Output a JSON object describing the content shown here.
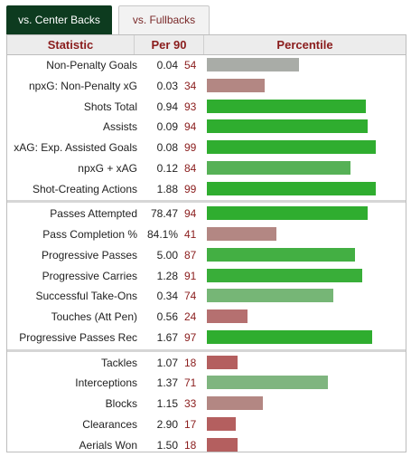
{
  "tabs": {
    "active": "vs. Center Backs",
    "inactive": "vs. Fullbacks"
  },
  "table": {
    "headers": {
      "statistic": "Statistic",
      "per90": "Per 90",
      "percentile": "Percentile"
    },
    "colors": {
      "strong_green": "#2fad2f",
      "mid_green": "#76b676",
      "grey": "#a9aca7",
      "mauve": "#b38783",
      "red": "#b45f5f"
    },
    "groups": [
      [
        {
          "stat": "Non-Penalty Goals",
          "per90": "0.04",
          "pct": "54",
          "color": "#a9aca7"
        },
        {
          "stat": "npxG: Non-Penalty xG",
          "per90": "0.03",
          "pct": "34",
          "color": "#b38783"
        },
        {
          "stat": "Shots Total",
          "per90": "0.94",
          "pct": "93",
          "color": "#2fad2f"
        },
        {
          "stat": "Assists",
          "per90": "0.09",
          "pct": "94",
          "color": "#2fad2f"
        },
        {
          "stat": "xAG: Exp. Assisted Goals",
          "per90": "0.08",
          "pct": "99",
          "color": "#2fad2f"
        },
        {
          "stat": "npxG + xAG",
          "per90": "0.12",
          "pct": "84",
          "color": "#56b156"
        },
        {
          "stat": "Shot-Creating Actions",
          "per90": "1.88",
          "pct": "99",
          "color": "#2fad2f"
        }
      ],
      [
        {
          "stat": "Passes Attempted",
          "per90": "78.47",
          "pct": "94",
          "color": "#2fad2f"
        },
        {
          "stat": "Pass Completion %",
          "per90": "84.1%",
          "pct": "41",
          "color": "#b38783"
        },
        {
          "stat": "Progressive Passes",
          "per90": "5.00",
          "pct": "87",
          "color": "#43af43"
        },
        {
          "stat": "Progressive Carries",
          "per90": "1.28",
          "pct": "91",
          "color": "#39ae39"
        },
        {
          "stat": "Successful Take-Ons",
          "per90": "0.34",
          "pct": "74",
          "color": "#76b676"
        },
        {
          "stat": "Touches (Att Pen)",
          "per90": "0.56",
          "pct": "24",
          "color": "#b57070"
        },
        {
          "stat": "Progressive Passes Rec",
          "per90": "1.67",
          "pct": "97",
          "color": "#2fad2f"
        }
      ],
      [
        {
          "stat": "Tackles",
          "per90": "1.07",
          "pct": "18",
          "color": "#b45f5f"
        },
        {
          "stat": "Interceptions",
          "per90": "1.37",
          "pct": "71",
          "color": "#7fb57f"
        },
        {
          "stat": "Blocks",
          "per90": "1.15",
          "pct": "33",
          "color": "#b38783"
        },
        {
          "stat": "Clearances",
          "per90": "2.90",
          "pct": "17",
          "color": "#b45f5f"
        },
        {
          "stat": "Aerials Won",
          "per90": "1.50",
          "pct": "18",
          "color": "#b45f5f"
        }
      ]
    ]
  }
}
